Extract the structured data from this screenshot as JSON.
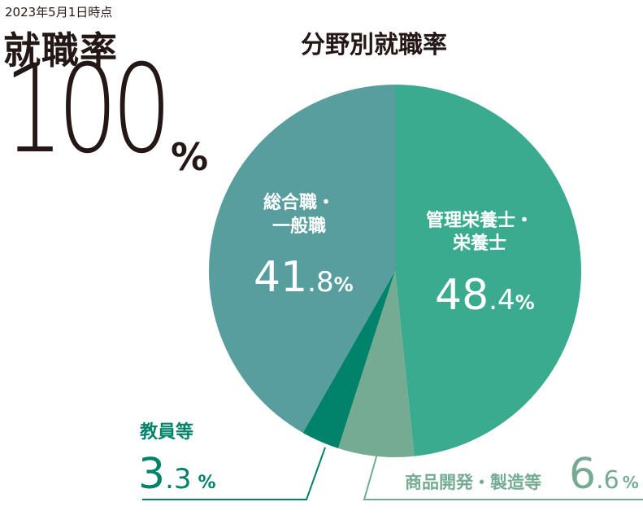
{
  "header": {
    "date": "2023年5月1日時点",
    "rate_label": "就職率",
    "rate_value": "100",
    "rate_unit": "%"
  },
  "colors": {
    "kanri": "#3aab8f",
    "shohin": "#76ab93",
    "kyoin": "#00836a",
    "sogo": "#589e9f",
    "text": "#231815"
  },
  "chart_data": {
    "type": "pie",
    "title": "分野別就職率",
    "slices": [
      {
        "label_line1": "管理栄養士・",
        "label_line2": "栄養士",
        "value": 48.4,
        "int": "48",
        "dec": ".4",
        "unit": "%",
        "color": "#3aab8f"
      },
      {
        "label_line1": "商品開発・製造等",
        "label_line2": "",
        "value": 6.6,
        "int": "6",
        "dec": ".6",
        "unit": "%",
        "color": "#76ab93"
      },
      {
        "label_line1": "教員等",
        "label_line2": "",
        "value": 3.3,
        "int": "3",
        "dec": ".3",
        "unit": "%",
        "color": "#00836a"
      },
      {
        "label_line1": "総合職・",
        "label_line2": "一般職",
        "value": 41.8,
        "int": "41",
        "dec": ".8",
        "unit": "%",
        "color": "#589e9f"
      }
    ]
  }
}
